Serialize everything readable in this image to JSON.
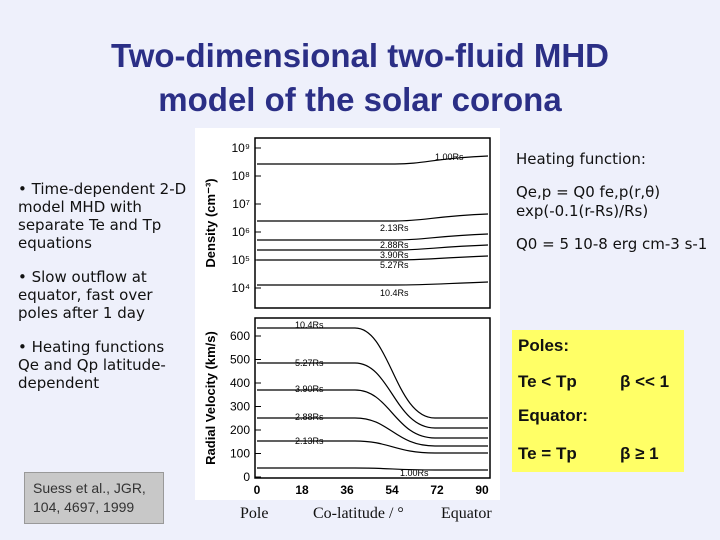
{
  "title": {
    "line1": "Two-dimensional two-fluid MHD",
    "line2": "model of the solar corona"
  },
  "bullets": [
    "• Time-dependent 2-D model MHD with separate Te and Tp equations",
    "• Slow outflow at equator, fast over poles after 1 day",
    "• Heating functions Qe and Qp latitude-dependent"
  ],
  "heating": {
    "label": "Heating function:",
    "eq1": "Qe,p = Q0 fe,p(r,θ) exp(-0.1(r-Rs)/Rs)",
    "eq2": "Q0 = 5 10-8 erg cm-3 s-1"
  },
  "box": {
    "poles_label": "Poles:",
    "poles_rel": "Te < Tp",
    "poles_beta": "β << 1",
    "equator_label": "Equator:",
    "equator_rel": "Te = Tp",
    "equator_beta": "β ≥ 1"
  },
  "citation": {
    "line1": "Suess et al., JGR,",
    "line2": "104, 4697, 1999"
  },
  "figure": {
    "density_ylabel": "Density (cm⁻³)",
    "velocity_ylabel": "Radial Velocity (km/s)",
    "density_ticks": [
      "10⁹",
      "10⁸",
      "10⁷",
      "10⁶",
      "10⁵",
      "10⁴"
    ],
    "velocity_ticks": [
      "600",
      "500",
      "400",
      "300",
      "200",
      "100",
      "0"
    ],
    "x_ticks": [
      "0",
      "18",
      "36",
      "54",
      "72",
      "90"
    ],
    "density_curve_labels": [
      "1.00Rs",
      "2.13Rs",
      "2.88Rs",
      "3.90Rs",
      "5.27Rs",
      "10.4Rs"
    ],
    "velocity_curve_labels": [
      "10.4Rs",
      "5.27Rs",
      "3.90Rs",
      "2.88Rs",
      "2.13Rs",
      "1.00Rs"
    ]
  },
  "xaxis": {
    "pole": "Pole",
    "colat": "Co-latitude / °",
    "equator": "Equator"
  }
}
